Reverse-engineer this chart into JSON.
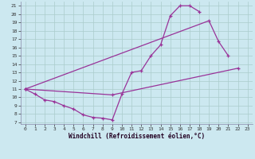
{
  "bg_color": "#cce8f0",
  "line_color": "#993399",
  "grid_color": "#aacccc",
  "xlabel": "Windchill (Refroidissement éolien,°C)",
  "xlim": [
    -0.5,
    23.5
  ],
  "ylim": [
    6.8,
    21.5
  ],
  "xticks": [
    0,
    1,
    2,
    3,
    4,
    5,
    6,
    7,
    8,
    9,
    10,
    11,
    12,
    13,
    14,
    15,
    16,
    17,
    18,
    19,
    20,
    21,
    22,
    23
  ],
  "yticks": [
    7,
    8,
    9,
    10,
    11,
    12,
    13,
    14,
    15,
    16,
    17,
    18,
    19,
    20,
    21
  ],
  "curve1_x": [
    0,
    1,
    2,
    3,
    4,
    5,
    6,
    7,
    8,
    9,
    10,
    11,
    12,
    13,
    14,
    15,
    16,
    17,
    18
  ],
  "curve1_y": [
    11.0,
    10.4,
    9.7,
    9.5,
    9.0,
    8.6,
    7.9,
    7.6,
    7.5,
    7.3,
    10.4,
    13.0,
    13.2,
    15.0,
    16.3,
    19.8,
    21.0,
    21.0,
    20.3
  ],
  "curve2_x": [
    0,
    19,
    20,
    21
  ],
  "curve2_y": [
    11.0,
    19.2,
    16.7,
    15.0
  ],
  "curve3_x": [
    0,
    9,
    22
  ],
  "curve3_y": [
    11.0,
    10.3,
    13.5
  ]
}
